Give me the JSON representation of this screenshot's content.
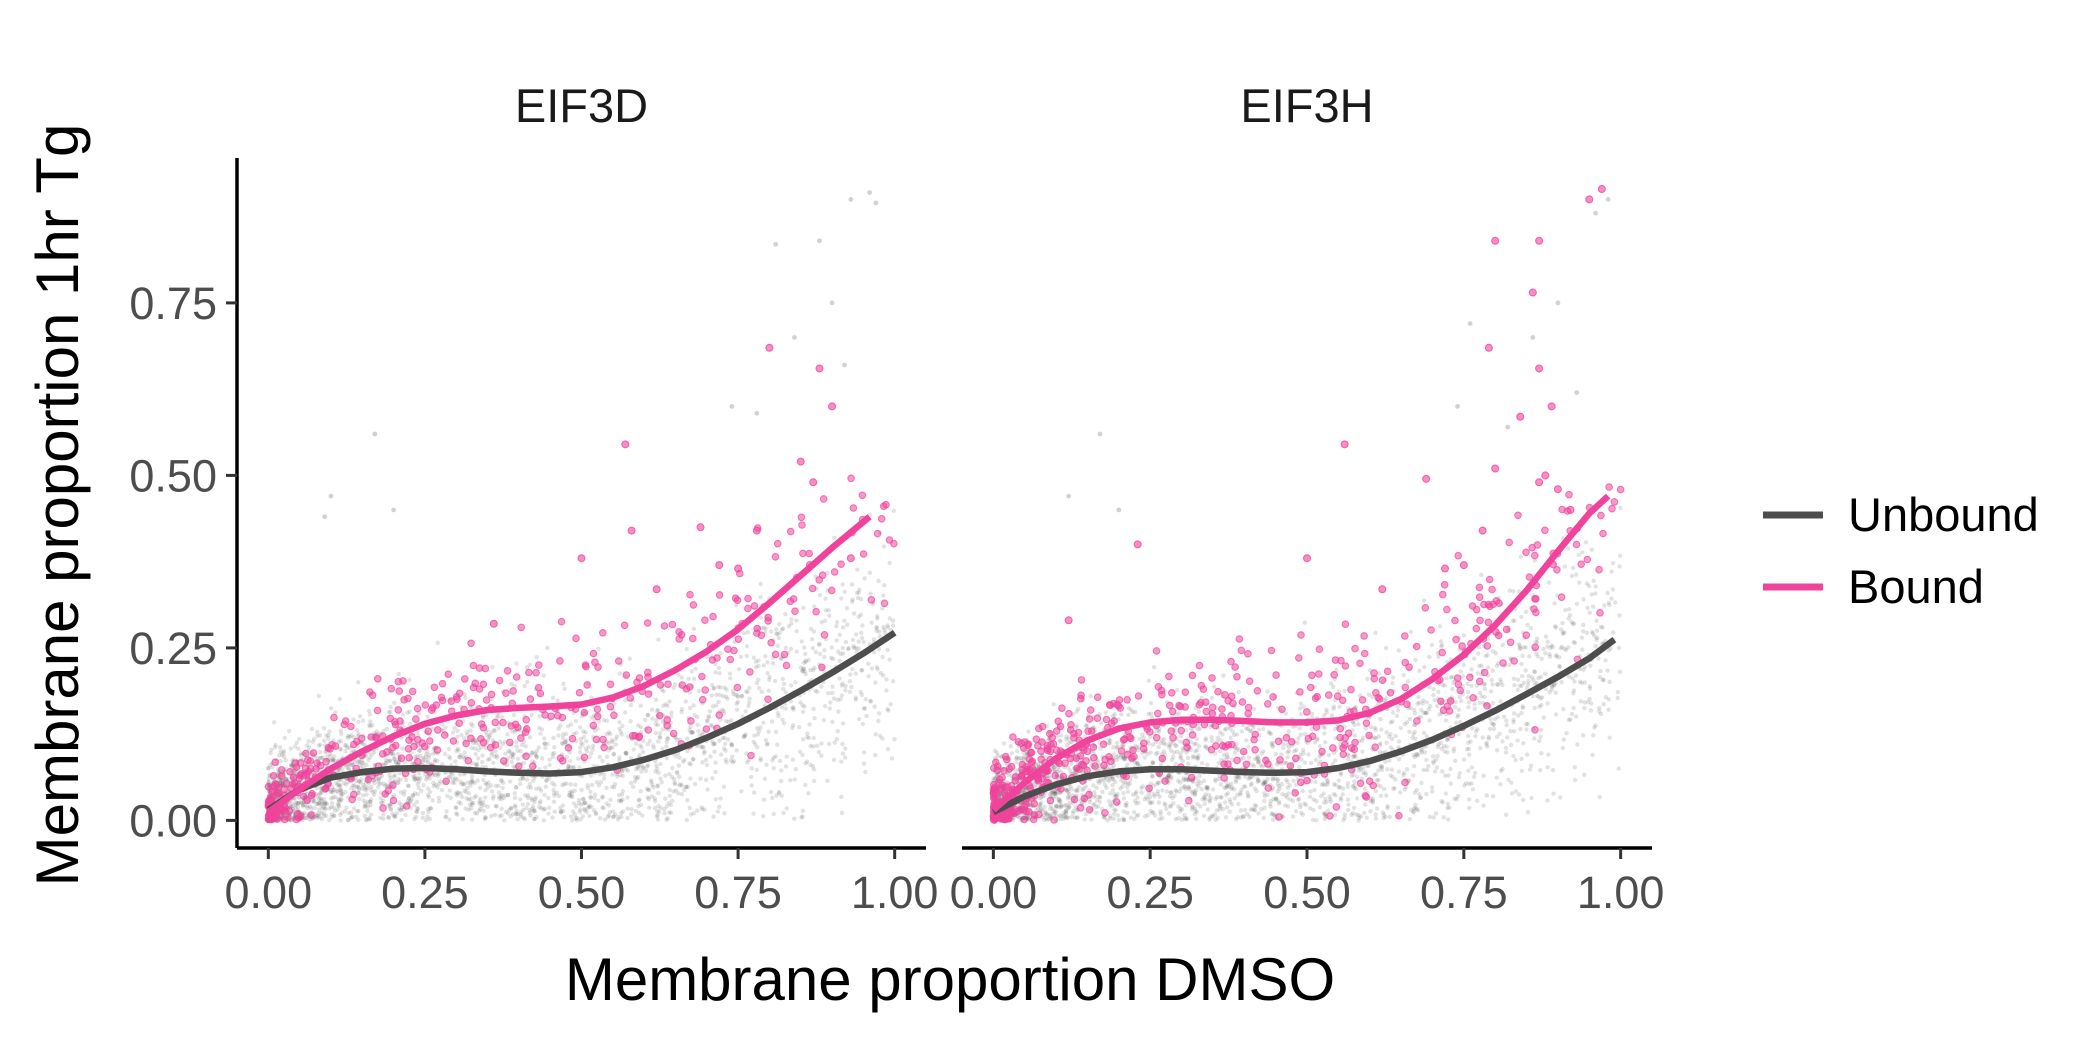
{
  "chart_data": {
    "type": "scatter",
    "xlabel": "Membrane proportion DMSO",
    "ylabel": "Membrane proportion 1hr Tg",
    "xlim": [
      -0.05,
      1.05
    ],
    "ylim": [
      -0.04,
      0.96
    ],
    "x_ticks": [
      0,
      0.25,
      0.5,
      0.75,
      1
    ],
    "x_tick_labels": [
      "0.00",
      "0.25",
      "0.50",
      "0.75",
      "1.00"
    ],
    "y_ticks": [
      0,
      0.25,
      0.5,
      0.75
    ],
    "y_tick_labels": [
      "0.00",
      "0.25",
      "0.50",
      "0.75"
    ],
    "grid": false,
    "legend_position": "right",
    "legend": [
      {
        "label": "Unbound",
        "color": "#4d4d4d"
      },
      {
        "label": "Bound",
        "color": "#f0439b"
      }
    ],
    "colors": {
      "unbound": "#4d4d4d",
      "bound": "#f0439b"
    },
    "panels": [
      {
        "title": "EIF3D",
        "smooth": {
          "unbound": {
            "x": [
              0,
              0.05,
              0.1,
              0.15,
              0.2,
              0.25,
              0.3,
              0.35,
              0.4,
              0.45,
              0.5,
              0.55,
              0.6,
              0.65,
              0.7,
              0.75,
              0.8,
              0.85,
              0.9,
              0.95,
              1.0
            ],
            "y": [
              0.015,
              0.045,
              0.062,
              0.07,
              0.075,
              0.076,
              0.074,
              0.071,
              0.069,
              0.068,
              0.07,
              0.077,
              0.088,
              0.102,
              0.12,
              0.14,
              0.163,
              0.188,
              0.214,
              0.242,
              0.272
            ]
          },
          "bound": {
            "x": [
              0,
              0.05,
              0.1,
              0.15,
              0.2,
              0.25,
              0.3,
              0.35,
              0.4,
              0.45,
              0.5,
              0.55,
              0.6,
              0.65,
              0.7,
              0.75,
              0.8,
              0.85,
              0.9,
              0.96
            ],
            "y": [
              0.012,
              0.045,
              0.075,
              0.1,
              0.122,
              0.14,
              0.152,
              0.16,
              0.163,
              0.165,
              0.168,
              0.178,
              0.195,
              0.218,
              0.245,
              0.277,
              0.315,
              0.355,
              0.395,
              0.44
            ]
          }
        },
        "bound_outliers": [
          {
            "x": 0.57,
            "y": 0.545
          },
          {
            "x": 0.8,
            "y": 0.685
          },
          {
            "x": 0.88,
            "y": 0.655
          },
          {
            "x": 0.9,
            "y": 0.6
          },
          {
            "x": 0.85,
            "y": 0.52
          },
          {
            "x": 0.87,
            "y": 0.49
          },
          {
            "x": 0.58,
            "y": 0.42
          },
          {
            "x": 0.69,
            "y": 0.425
          },
          {
            "x": 0.5,
            "y": 0.38
          },
          {
            "x": 0.72,
            "y": 0.37
          },
          {
            "x": 0.75,
            "y": 0.365
          },
          {
            "x": 0.62,
            "y": 0.335
          },
          {
            "x": 0.36,
            "y": 0.285
          },
          {
            "x": 0.93,
            "y": 0.38
          },
          {
            "x": 0.78,
            "y": 0.42
          }
        ],
        "unbound_outliers": [
          {
            "x": 0.96,
            "y": 0.91
          },
          {
            "x": 0.97,
            "y": 0.895
          },
          {
            "x": 0.93,
            "y": 0.9
          },
          {
            "x": 0.88,
            "y": 0.84
          },
          {
            "x": 0.81,
            "y": 0.835
          },
          {
            "x": 0.17,
            "y": 0.56
          },
          {
            "x": 0.1,
            "y": 0.47
          },
          {
            "x": 0.2,
            "y": 0.45
          },
          {
            "x": 0.09,
            "y": 0.44
          },
          {
            "x": 0.9,
            "y": 0.75
          },
          {
            "x": 0.84,
            "y": 0.7
          },
          {
            "x": 0.92,
            "y": 0.66
          },
          {
            "x": 0.74,
            "y": 0.6
          },
          {
            "x": 0.78,
            "y": 0.59
          }
        ]
      },
      {
        "title": "EIF3H",
        "smooth": {
          "unbound": {
            "x": [
              0,
              0.05,
              0.1,
              0.15,
              0.2,
              0.25,
              0.3,
              0.35,
              0.4,
              0.45,
              0.5,
              0.55,
              0.6,
              0.65,
              0.7,
              0.75,
              0.8,
              0.85,
              0.9,
              0.95,
              0.99
            ],
            "y": [
              0.012,
              0.035,
              0.052,
              0.064,
              0.071,
              0.074,
              0.074,
              0.072,
              0.07,
              0.069,
              0.07,
              0.076,
              0.086,
              0.1,
              0.117,
              0.137,
              0.159,
              0.183,
              0.208,
              0.235,
              0.262
            ]
          },
          "bound": {
            "x": [
              0,
              0.05,
              0.1,
              0.15,
              0.2,
              0.25,
              0.3,
              0.35,
              0.4,
              0.45,
              0.5,
              0.55,
              0.6,
              0.65,
              0.7,
              0.75,
              0.8,
              0.85,
              0.9,
              0.95,
              0.98
            ],
            "y": [
              0.015,
              0.055,
              0.09,
              0.116,
              0.133,
              0.142,
              0.146,
              0.146,
              0.144,
              0.142,
              0.142,
              0.145,
              0.156,
              0.176,
              0.205,
              0.24,
              0.283,
              0.333,
              0.39,
              0.445,
              0.47
            ]
          }
        },
        "bound_outliers": [
          {
            "x": 0.97,
            "y": 0.915
          },
          {
            "x": 0.95,
            "y": 0.9
          },
          {
            "x": 0.8,
            "y": 0.84
          },
          {
            "x": 0.87,
            "y": 0.84
          },
          {
            "x": 0.86,
            "y": 0.765
          },
          {
            "x": 0.79,
            "y": 0.685
          },
          {
            "x": 0.87,
            "y": 0.655
          },
          {
            "x": 0.89,
            "y": 0.6
          },
          {
            "x": 0.84,
            "y": 0.585
          },
          {
            "x": 0.56,
            "y": 0.545
          },
          {
            "x": 0.8,
            "y": 0.51
          },
          {
            "x": 0.88,
            "y": 0.5
          },
          {
            "x": 0.69,
            "y": 0.495
          },
          {
            "x": 0.87,
            "y": 0.49
          },
          {
            "x": 0.9,
            "y": 0.48
          },
          {
            "x": 0.23,
            "y": 0.4
          },
          {
            "x": 0.5,
            "y": 0.38
          },
          {
            "x": 0.92,
            "y": 0.45
          },
          {
            "x": 0.78,
            "y": 0.42
          },
          {
            "x": 0.75,
            "y": 0.37
          },
          {
            "x": 0.72,
            "y": 0.365
          },
          {
            "x": 0.62,
            "y": 0.335
          },
          {
            "x": 0.12,
            "y": 0.29
          }
        ],
        "unbound_outliers": [
          {
            "x": 0.98,
            "y": 0.9
          },
          {
            "x": 0.96,
            "y": 0.88
          },
          {
            "x": 0.9,
            "y": 0.75
          },
          {
            "x": 0.86,
            "y": 0.7
          },
          {
            "x": 0.17,
            "y": 0.56
          },
          {
            "x": 0.12,
            "y": 0.47
          },
          {
            "x": 0.2,
            "y": 0.45
          },
          {
            "x": 0.76,
            "y": 0.72
          },
          {
            "x": 0.93,
            "y": 0.62
          },
          {
            "x": 0.74,
            "y": 0.6
          },
          {
            "x": 0.82,
            "y": 0.57
          }
        ]
      }
    ]
  }
}
